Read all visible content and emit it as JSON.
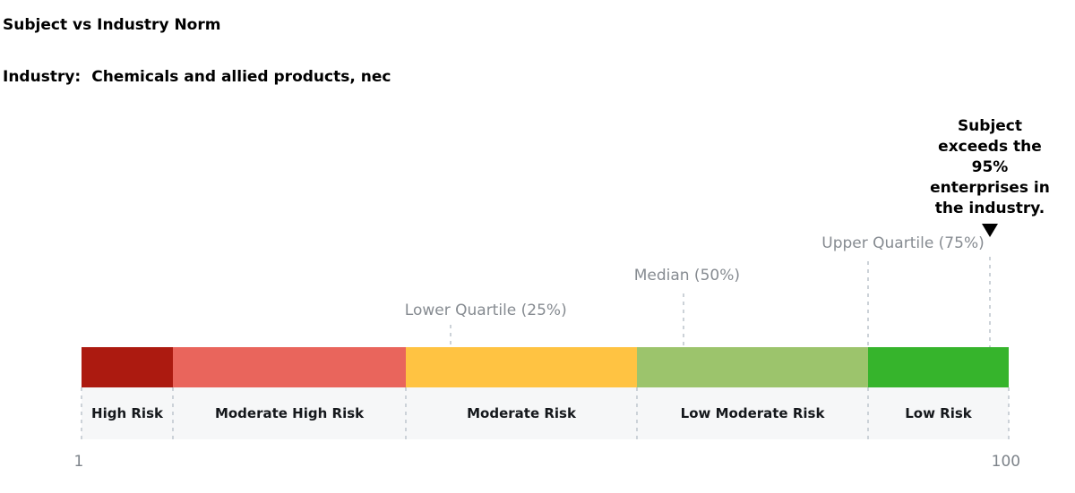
{
  "title": "Subject vs Industry Norm",
  "industry": {
    "label": "Industry:",
    "value": "Chemicals and allied products, nec"
  },
  "bar": {
    "segments": [
      {
        "label": "High Risk",
        "color": "#AC1A10",
        "range_start": 1,
        "range_end": 10,
        "width_pct": "9.86%"
      },
      {
        "label": "Moderate High Risk",
        "color": "#E9655C",
        "range_start": 10,
        "range_end": 35,
        "width_pct": "25.12%"
      },
      {
        "label": "Moderate Risk",
        "color": "#FFC342",
        "range_start": 35,
        "range_end": 60,
        "width_pct": "24.93%"
      },
      {
        "label": "Low Moderate Risk",
        "color": "#9CC46C",
        "range_start": 60,
        "range_end": 85,
        "width_pct": "24.93%"
      },
      {
        "label": "Low Risk",
        "color": "#36B42C",
        "range_start": 85,
        "range_end": 100,
        "width_pct": "15.16%"
      }
    ],
    "separators_pct": [
      "0%",
      "9.86%",
      "34.98%",
      "59.91%",
      "84.83%",
      "100%"
    ]
  },
  "markers": [
    {
      "label": "Lower Quartile (25%)",
      "value": 40,
      "line_left_pct": "39.81%"
    },
    {
      "label": "Median (50%)",
      "value": 65,
      "line_left_pct": "64.93%"
    },
    {
      "label": "Upper Quartile (75%)",
      "value": 85,
      "line_left_pct": "84.83%"
    }
  ],
  "subject": {
    "lines": [
      "Subject",
      "exceeds the",
      "95%",
      "enterprises in",
      "the industry."
    ],
    "text": "Subject exceeds the 95% enterprises in the industry.",
    "value": 98,
    "line_left_pct": "97.97%",
    "marker_icon": "down-triangle",
    "marker_color": "#000000"
  },
  "axis": {
    "min": "1",
    "max": "100"
  },
  "colors": {
    "band_background": "#f6f7f8",
    "dashed_line": "#ccd2d8",
    "marker_label_text": "#868b91",
    "axis_text": "#7d838a",
    "title_text": "#000000"
  },
  "chart_data": {
    "type": "bar",
    "subtype": "horizontal-risk-scale",
    "title": "Subject vs Industry Norm",
    "subtitle": "Industry: Chemicals and allied products, nec",
    "x_range": [
      1,
      100
    ],
    "axis_ticks": [
      1,
      100
    ],
    "grid": false,
    "legend": "none",
    "segments": [
      {
        "label": "High Risk",
        "start": 1,
        "end": 10,
        "color": "#AC1A10"
      },
      {
        "label": "Moderate High Risk",
        "start": 10,
        "end": 35,
        "color": "#E9655C"
      },
      {
        "label": "Moderate Risk",
        "start": 35,
        "end": 60,
        "color": "#FFC342"
      },
      {
        "label": "Low Moderate Risk",
        "start": 60,
        "end": 85,
        "color": "#9CC46C"
      },
      {
        "label": "Low Risk",
        "start": 85,
        "end": 100,
        "color": "#36B42C"
      }
    ],
    "markers": [
      {
        "label": "Lower Quartile (25%)",
        "value": 40
      },
      {
        "label": "Median (50%)",
        "value": 65
      },
      {
        "label": "Upper Quartile (75%)",
        "value": 85
      },
      {
        "label": "Subject",
        "value": 98,
        "annotation": "Subject exceeds the 95% enterprises in the industry."
      }
    ]
  }
}
